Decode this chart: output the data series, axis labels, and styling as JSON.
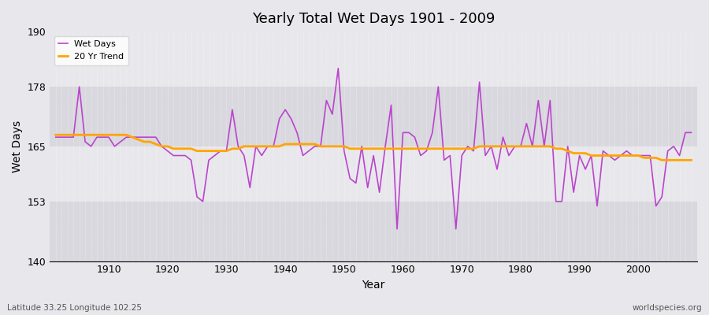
{
  "title": "Yearly Total Wet Days 1901 - 2009",
  "xlabel": "Year",
  "ylabel": "Wet Days",
  "bottom_left_label": "Latitude 33.25 Longitude 102.25",
  "bottom_right_label": "worldspecies.org",
  "ylim": [
    140,
    190
  ],
  "yticks": [
    140,
    153,
    165,
    178,
    190
  ],
  "start_year": 1901,
  "end_year": 2009,
  "wet_days_color": "#bb44cc",
  "trend_color": "#FFA500",
  "bg_color": "#e8e8ec",
  "band_colors": [
    "#d8d8de",
    "#e8e8ec"
  ],
  "wet_days": [
    167,
    167,
    167,
    167,
    178,
    166,
    165,
    167,
    167,
    167,
    165,
    166,
    167,
    167,
    167,
    167,
    167,
    167,
    165,
    164,
    163,
    163,
    163,
    162,
    154,
    153,
    162,
    163,
    164,
    164,
    173,
    165,
    163,
    156,
    165,
    163,
    165,
    165,
    171,
    173,
    171,
    168,
    163,
    164,
    165,
    165,
    175,
    172,
    182,
    164,
    158,
    157,
    165,
    156,
    163,
    155,
    165,
    174,
    147,
    168,
    168,
    167,
    163,
    164,
    168,
    178,
    162,
    163,
    147,
    163,
    165,
    164,
    179,
    163,
    165,
    160,
    167,
    163,
    165,
    165,
    170,
    165,
    175,
    165,
    175,
    153,
    153,
    165,
    155,
    163,
    160,
    163,
    152,
    164,
    163,
    162,
    163,
    164,
    163,
    163,
    163,
    163,
    152,
    154,
    164,
    165,
    163,
    168,
    168
  ],
  "trend": [
    167.5,
    167.5,
    167.5,
    167.5,
    167.5,
    167.5,
    167.5,
    167.5,
    167.5,
    167.5,
    167.5,
    167.5,
    167.5,
    167.0,
    166.5,
    166.0,
    166.0,
    165.5,
    165.0,
    165.0,
    164.5,
    164.5,
    164.5,
    164.5,
    164.0,
    164.0,
    164.0,
    164.0,
    164.0,
    164.0,
    164.5,
    164.5,
    165.0,
    165.0,
    165.0,
    165.0,
    165.0,
    165.0,
    165.0,
    165.5,
    165.5,
    165.5,
    165.5,
    165.5,
    165.5,
    165.0,
    165.0,
    165.0,
    165.0,
    165.0,
    164.5,
    164.5,
    164.5,
    164.5,
    164.5,
    164.5,
    164.5,
    164.5,
    164.5,
    164.5,
    164.5,
    164.5,
    164.5,
    164.5,
    164.5,
    164.5,
    164.5,
    164.5,
    164.5,
    164.5,
    164.5,
    164.5,
    165.0,
    165.0,
    165.0,
    165.0,
    165.0,
    165.0,
    165.0,
    165.0,
    165.0,
    165.0,
    165.0,
    165.0,
    165.0,
    164.5,
    164.5,
    164.0,
    163.5,
    163.5,
    163.5,
    163.0,
    163.0,
    163.0,
    163.0,
    163.0,
    163.0,
    163.0,
    163.0,
    163.0,
    162.5,
    162.5,
    162.5,
    162.0,
    162.0,
    162.0,
    162.0,
    162.0,
    162.0
  ]
}
